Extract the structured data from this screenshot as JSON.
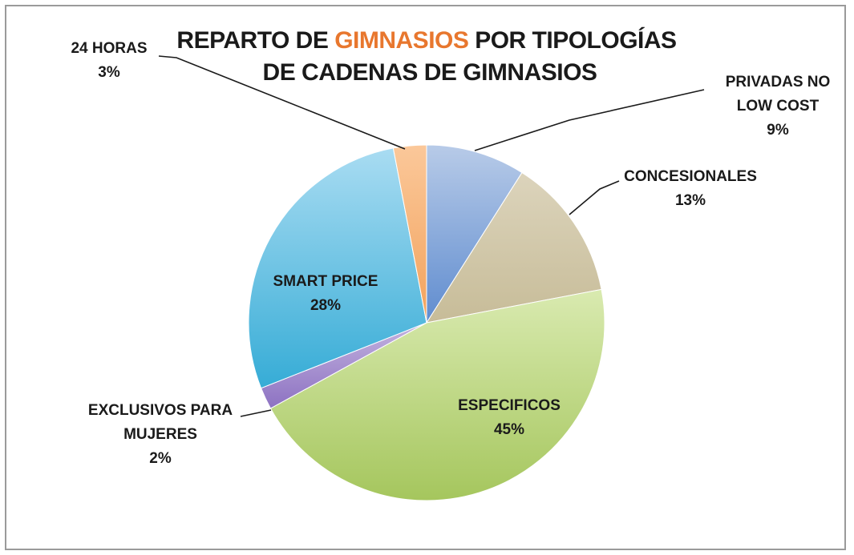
{
  "chart_data": {
    "type": "pie",
    "title": {
      "line1_part1": "REPARTO DE ",
      "line1_highlight": "GIMNASIOS",
      "line1_part2": " POR TIPOLOGÍAS",
      "line2": "DE CADENAS DE GIMNASIOS"
    },
    "highlight_color": "#e8772e",
    "slices": [
      {
        "key": "privadas",
        "label_lines": [
          "PRIVADAS NO",
          "LOW COST"
        ],
        "value": 9,
        "pct_label": "9%",
        "color_light": "#b8cbe8",
        "color_dark": "#5f8ccf"
      },
      {
        "key": "concesionales",
        "label_lines": [
          "CONCESIONALES"
        ],
        "value": 13,
        "pct_label": "13%",
        "color_light": "#dcd4bc",
        "color_dark": "#c7bc98"
      },
      {
        "key": "especificos",
        "label_lines": [
          "ESPECIFICOS"
        ],
        "value": 45,
        "pct_label": "45%",
        "color_light": "#d9eab0",
        "color_dark": "#a5c65d"
      },
      {
        "key": "exclusivos",
        "label_lines": [
          "EXCLUSIVOS PARA",
          "MUJERES"
        ],
        "value": 2,
        "pct_label": "2%",
        "color_light": "#c3b3df",
        "color_dark": "#8d72c2"
      },
      {
        "key": "smart",
        "label_lines": [
          "SMART PRICE"
        ],
        "value": 28,
        "pct_label": "28%",
        "color_light": "#a9dcf2",
        "color_dark": "#36acd6"
      },
      {
        "key": "horas24",
        "label_lines": [
          "24 HORAS"
        ],
        "value": 3,
        "pct_label": "3%",
        "color_light": "#fbc89a",
        "color_dark": "#f2a25c"
      }
    ]
  }
}
